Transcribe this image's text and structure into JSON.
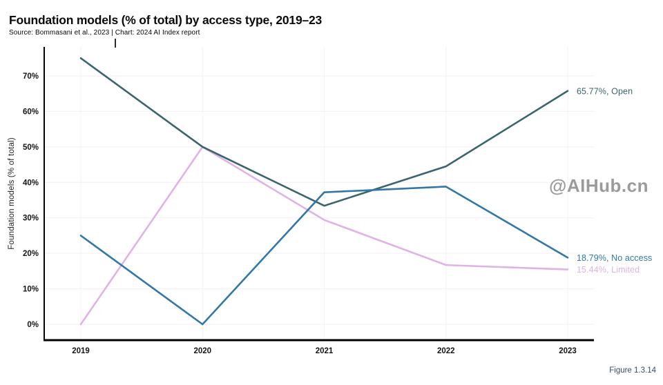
{
  "header": {
    "title": "Foundation models (% of total) by access type, 2019–23",
    "source": "Source: Bommasani et al., 2023 | Chart: 2024 AI Index report"
  },
  "watermark": "@AIHub.cn",
  "figure_label": "Figure 1.3.14",
  "colors": {
    "grid_h": "#f5eef3",
    "grid_v": "#f8f1f6",
    "axis": "#000000",
    "tick_text": "#141414",
    "watermark": "#9b9b9b",
    "figure_label": "#374e63",
    "open": "#3a656c",
    "no_access": "#3277a6",
    "limited": "#dfb3e5"
  },
  "chart_data": {
    "type": "line",
    "title": "Foundation models (% of total) by access type, 2019–23",
    "xlabel": "",
    "ylabel": "Foundation models (% of total)",
    "x": [
      2019,
      2020,
      2021,
      2022,
      2023
    ],
    "x_tick_labels": [
      "2019",
      "2020",
      "2021",
      "2022",
      "2023"
    ],
    "y_ticks": [
      0,
      10,
      20,
      30,
      40,
      50,
      60,
      70
    ],
    "y_tick_suffix": "%",
    "ylim": [
      0,
      78
    ],
    "grid": true,
    "legend_position": "end-of-line labels at right",
    "series": [
      {
        "name": "Open",
        "color": "#3a656c",
        "values": [
          75,
          50,
          33.4,
          44.5,
          65.77
        ],
        "end_label": "65.77%, Open"
      },
      {
        "name": "No access",
        "color": "#3277a6",
        "values": [
          25,
          0,
          37.2,
          38.8,
          18.79
        ],
        "end_label": "18.79%, No access"
      },
      {
        "name": "Limited",
        "color": "#dfb3e5",
        "values": [
          0,
          50,
          29.4,
          16.7,
          15.44
        ],
        "end_label": "15.44%, Limited"
      }
    ]
  }
}
